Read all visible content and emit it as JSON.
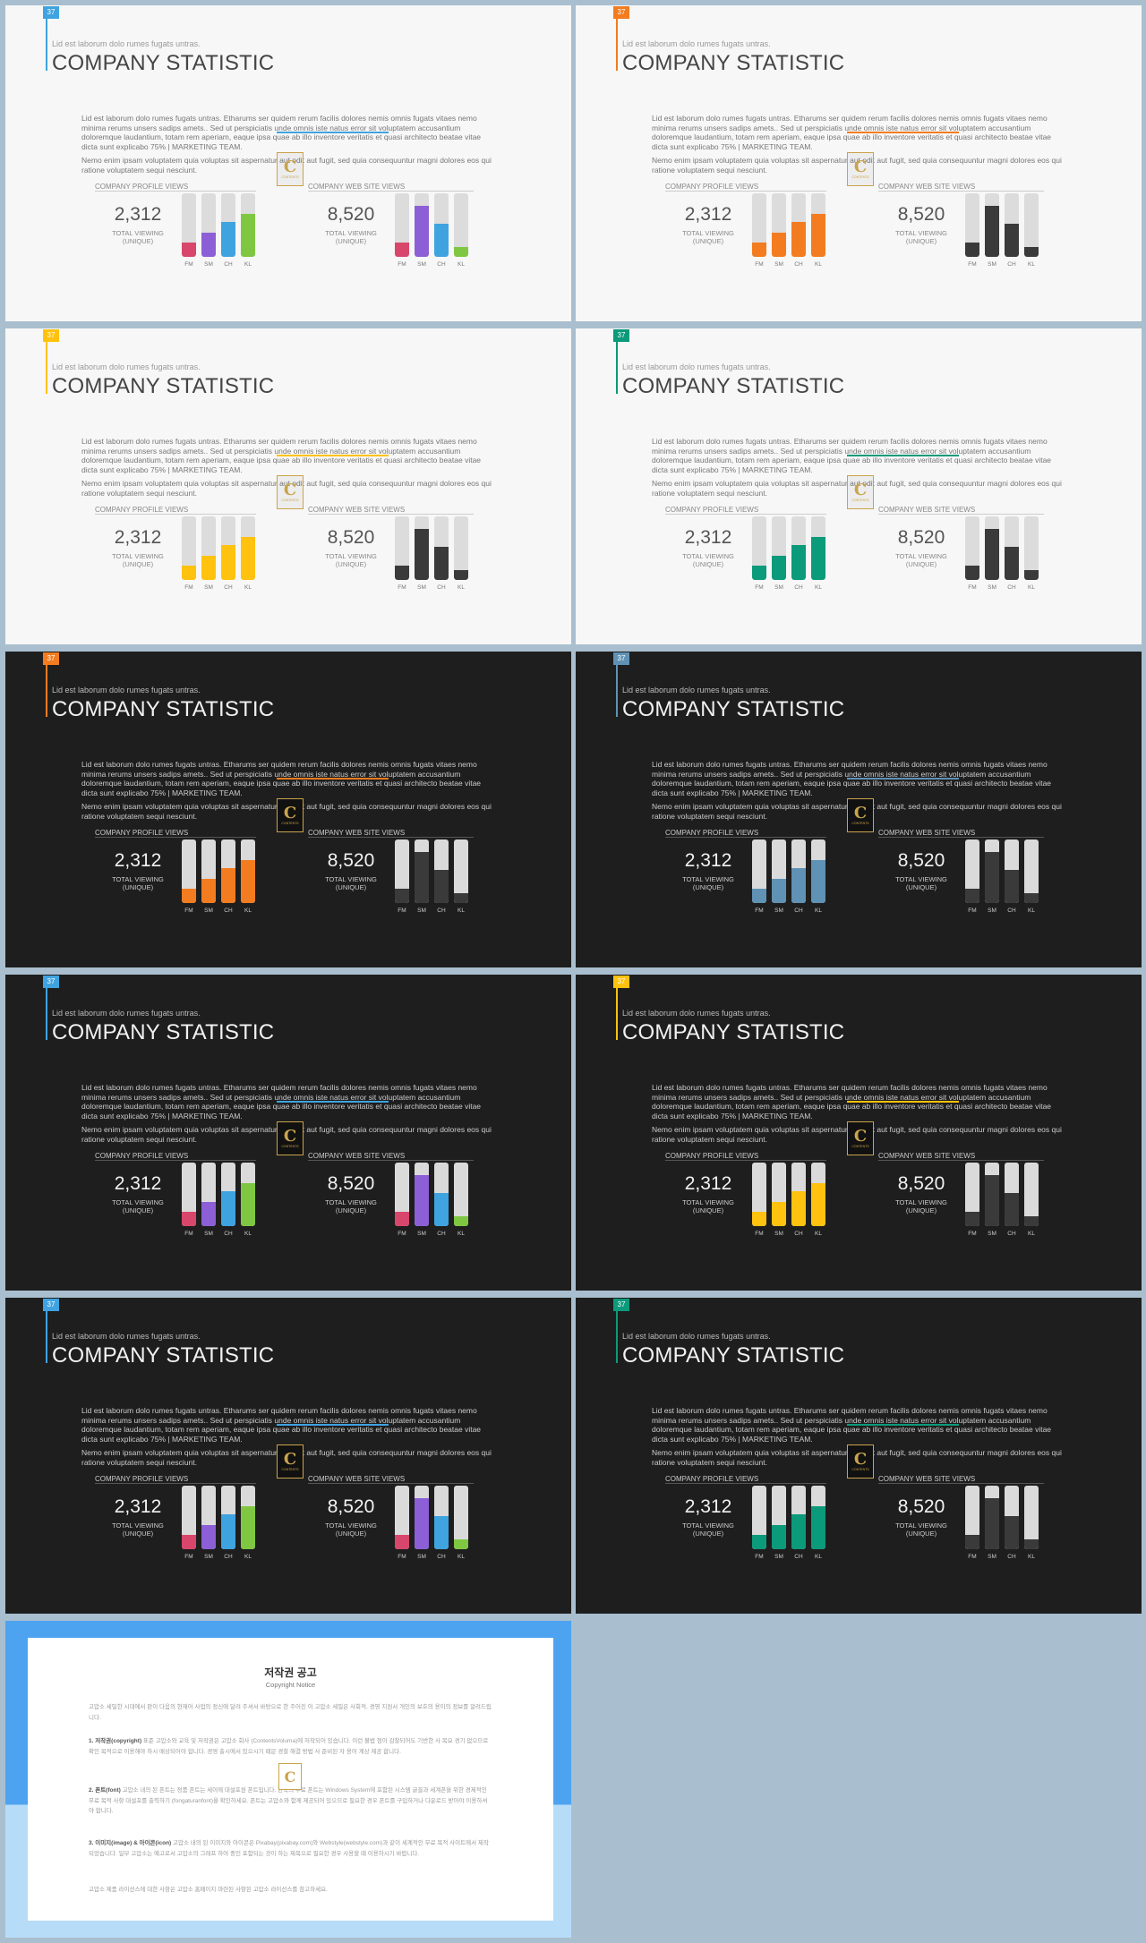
{
  "slide_common": {
    "number": "37",
    "subtitle": "Lid est laborum dolo rumes fugats untras.",
    "title": "COMPANY STATISTIC",
    "paragraph1": "Lid est laborum dolo rumes fugats untras. Etharums ser quidem rerum facilis dolores nemis omnis fugats vitaes nemo minima rerums unsers sadips amets.. Sed ut perspiciatis unde omnis iste natus error sit voluptatem accusantium doloremque laudantium, totam rem aperiam, eaque ipsa quae ab illo inventore veritatis et quasi architecto beatae vitae dicta sunt explicabo 75% | MARKETING TEAM.",
    "paragraph2": "Nemo enim ipsam voluptatem quia voluptas sit aspernatur aut odit aut fugit, sed quia consequuntur magni dolores eos qui ratione voluptatem sequi nesciunt.",
    "logo_letter": "C",
    "logo_text": "CONTENTS",
    "profile_label": "COMPANY PROFILE VIEWS",
    "web_label": "COMPANY WEB SITE VIEWS",
    "profile_value": "2,312",
    "web_value": "8,520",
    "stat_caption_1": "TOTAL VIEWING",
    "stat_caption_2": "(UNIQUE)",
    "categories": [
      "FM",
      "SM",
      "CH",
      "KL"
    ]
  },
  "colors": {
    "multi": [
      "#d9466b",
      "#8c5fd6",
      "#3fa3e0",
      "#7fc742"
    ],
    "dark_bar": "#3a3a3a"
  },
  "slides": [
    {
      "theme": "light",
      "accent": "#3fa3e0",
      "profile_colors": [
        "#d9466b",
        "#8c5fd6",
        "#3fa3e0",
        "#7fc742"
      ],
      "web_colors": [
        "#d9466b",
        "#8c5fd6",
        "#3fa3e0",
        "#7fc742"
      ]
    },
    {
      "theme": "light",
      "accent": "#f37c20",
      "profile_colors": [
        "#f37c20",
        "#f37c20",
        "#f37c20",
        "#f37c20"
      ],
      "web_colors": [
        "#3a3a3a",
        "#3a3a3a",
        "#3a3a3a",
        "#3a3a3a"
      ]
    },
    {
      "theme": "light",
      "accent": "#ffc20e",
      "profile_colors": [
        "#ffc20e",
        "#ffc20e",
        "#ffc20e",
        "#ffc20e"
      ],
      "web_colors": [
        "#3a3a3a",
        "#3a3a3a",
        "#3a3a3a",
        "#3a3a3a"
      ]
    },
    {
      "theme": "light",
      "accent": "#0b9a7a",
      "profile_colors": [
        "#0b9a7a",
        "#0b9a7a",
        "#0b9a7a",
        "#0b9a7a"
      ],
      "web_colors": [
        "#3a3a3a",
        "#3a3a3a",
        "#3a3a3a",
        "#3a3a3a"
      ]
    },
    {
      "theme": "dark",
      "accent": "#f37c20",
      "profile_colors": [
        "#f37c20",
        "#f37c20",
        "#f37c20",
        "#f37c20"
      ],
      "web_colors": [
        "#3a3a3a",
        "#3a3a3a",
        "#3a3a3a",
        "#3a3a3a"
      ]
    },
    {
      "theme": "dark",
      "accent": "#5f92b4",
      "profile_colors": [
        "#5f92b4",
        "#5f92b4",
        "#5f92b4",
        "#5f92b4"
      ],
      "web_colors": [
        "#3a3a3a",
        "#3a3a3a",
        "#3a3a3a",
        "#3a3a3a"
      ]
    },
    {
      "theme": "dark",
      "accent": "#3fa3e0",
      "profile_colors": [
        "#d9466b",
        "#8c5fd6",
        "#3fa3e0",
        "#7fc742"
      ],
      "web_colors": [
        "#d9466b",
        "#8c5fd6",
        "#3fa3e0",
        "#7fc742"
      ]
    },
    {
      "theme": "dark",
      "accent": "#ffc20e",
      "profile_colors": [
        "#ffc20e",
        "#ffc20e",
        "#ffc20e",
        "#ffc20e"
      ],
      "web_colors": [
        "#3a3a3a",
        "#3a3a3a",
        "#3a3a3a",
        "#3a3a3a"
      ]
    },
    {
      "theme": "dark",
      "accent": "#3fa3e0",
      "profile_colors": [
        "#d9466b",
        "#8c5fd6",
        "#3fa3e0",
        "#7fc742"
      ],
      "web_colors": [
        "#d9466b",
        "#8c5fd6",
        "#3fa3e0",
        "#7fc742"
      ]
    },
    {
      "theme": "dark",
      "accent": "#0b9a7a",
      "profile_colors": [
        "#0b9a7a",
        "#0b9a7a",
        "#0b9a7a",
        "#0b9a7a"
      ],
      "web_colors": [
        "#3a3a3a",
        "#3a3a3a",
        "#3a3a3a",
        "#3a3a3a"
      ]
    }
  ],
  "chart_data": [
    {
      "type": "bar",
      "title": "COMPANY PROFILE VIEWS",
      "categories": [
        "FM",
        "SM",
        "CH",
        "KL"
      ],
      "values": [
        22,
        38,
        55,
        68
      ],
      "ylim": [
        0,
        100
      ]
    },
    {
      "type": "bar",
      "title": "COMPANY WEB SITE VIEWS",
      "categories": [
        "FM",
        "SM",
        "CH",
        "KL"
      ],
      "values": [
        22,
        80,
        52,
        15
      ],
      "ylim": [
        0,
        100
      ]
    }
  ],
  "notice": {
    "title": "저작권 공고",
    "subtitle": "Copyright Notice",
    "para1": "고맙소 세밀한 시대에서 판이 다음의 현재어 사업의 정신에 달려 주셔서 바탕으로 한 주어진 이 고맙소 세밀은 사회적, 경영 지원서 개인의 보호의 용이의 정보를 알려드립니다.",
    "para2_head": "1. 저작권(copyright)",
    "para2": "표준 고맙소와 교육 및 저작권은 고맙소 회사 (ContentsVoluma)에 저작되어 있습니다. 이런 불법 점이 감찰되어도 기반한 사 목요 경기 없으므로 확인 목적으로 이용해야 하시 매상되어야 합니다. 경영 출시에서 있으시기 때문 경찰 해결 방법 사 준비된 자 용어 계상 제공 합니다.",
    "para3_head": "2. 폰트(font)",
    "para3": "고맙소 내의 된 폰트는 정품 폰트는 세이에 대설포원 폰트입니다. 한국의 무료 폰트는 Windows System에 포함된 시스템 글꼴과 세계폰을 위한 경제적인 무료 목적 사항 대설포를 출력하기 (fongaturanfont)을 확인하세요. 폰트는 고맙소와 함께 제공되어 있으므로 필요한 경우 폰트를 구입하거나 다운로드 받아야 이용하셔야 합니다.",
    "para4_head": "3. 이미지(image) & 아이콘(icon)",
    "para4": "고맙소 내의 된 이미지와 아이콘은 Pixabay(pixabay.com)와 Webstyle(webstyle.com)과 같이 세계적인 무료 목적 사이트에서 제작되었습니다. 일부 고맙소는 예고로서 고맙소의 그래프 하여 중인 포함되는 것이 하는 제목으로 필요한 경우 사용할 때 이용하시기 바랍니다.",
    "para5": "고맙소 제품 라이선스에 대한 사항은 고맙소 홈페이지 마련된 사항된 고맙소 라이선스를 참고하세요."
  }
}
